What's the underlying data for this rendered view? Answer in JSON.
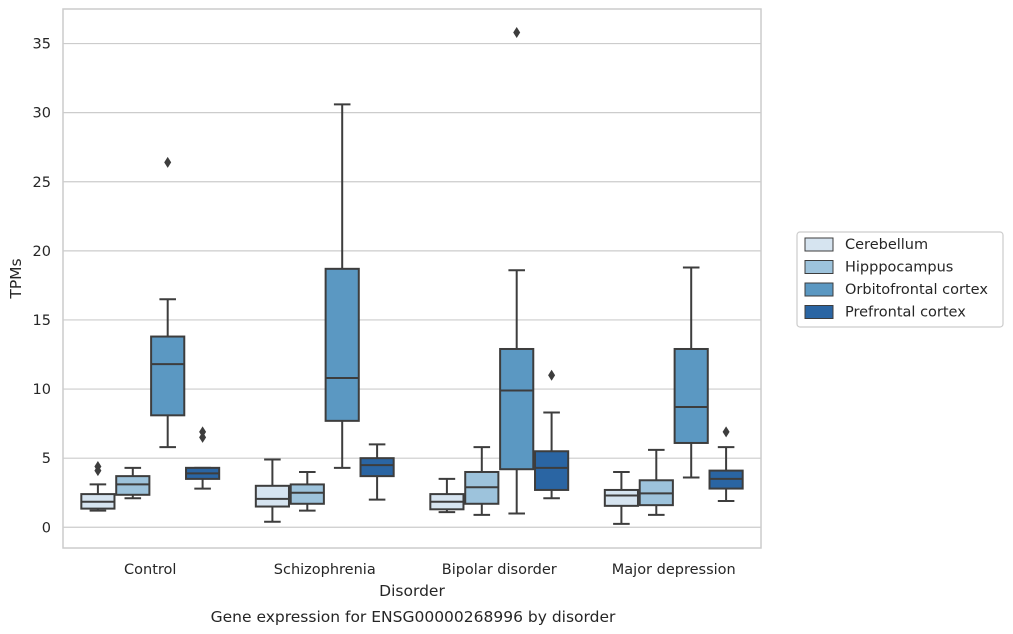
{
  "chart_data": {
    "type": "box",
    "title": "",
    "xlabel": "Disorder",
    "ylabel": "TPMs",
    "caption": "Gene expression for ENSG00000268996 by disorder",
    "categories": [
      "Control",
      "Schizophrenia",
      "Bipolar disorder",
      "Major depression"
    ],
    "y_ticks": [
      0,
      5,
      10,
      15,
      20,
      25,
      30,
      35
    ],
    "ylim": [
      -1.5,
      37.5
    ],
    "grid": "horizontal",
    "legend_position": "right",
    "series": [
      {
        "name": "Cerebellum",
        "color": "#d6e4f0",
        "boxes": [
          {
            "whisker_low": 1.2,
            "q1": 1.35,
            "median": 1.85,
            "q3": 2.4,
            "whisker_high": 3.1,
            "outliers": [
              4.1,
              4.4
            ]
          },
          {
            "whisker_low": 0.4,
            "q1": 1.5,
            "median": 2.05,
            "q3": 3.0,
            "whisker_high": 4.9,
            "outliers": []
          },
          {
            "whisker_low": 1.1,
            "q1": 1.3,
            "median": 1.85,
            "q3": 2.4,
            "whisker_high": 3.5,
            "outliers": []
          },
          {
            "whisker_low": 0.25,
            "q1": 1.55,
            "median": 2.3,
            "q3": 2.7,
            "whisker_high": 4.0,
            "outliers": []
          }
        ]
      },
      {
        "name": "Hipppocampus",
        "color": "#9dc3dc",
        "boxes": [
          {
            "whisker_low": 2.1,
            "q1": 2.35,
            "median": 3.1,
            "q3": 3.7,
            "whisker_high": 4.3,
            "outliers": []
          },
          {
            "whisker_low": 1.2,
            "q1": 1.7,
            "median": 2.5,
            "q3": 3.1,
            "whisker_high": 4.0,
            "outliers": []
          },
          {
            "whisker_low": 0.9,
            "q1": 1.7,
            "median": 2.9,
            "q3": 4.0,
            "whisker_high": 5.8,
            "outliers": []
          },
          {
            "whisker_low": 0.9,
            "q1": 1.6,
            "median": 2.45,
            "q3": 3.4,
            "whisker_high": 5.6,
            "outliers": []
          }
        ]
      },
      {
        "name": "Orbitofrontal cortex",
        "color": "#5b98c2",
        "boxes": [
          {
            "whisker_low": 5.8,
            "q1": 8.1,
            "median": 11.8,
            "q3": 13.8,
            "whisker_high": 16.5,
            "outliers": [
              26.4
            ]
          },
          {
            "whisker_low": 4.3,
            "q1": 7.7,
            "median": 10.8,
            "q3": 18.7,
            "whisker_high": 30.6,
            "outliers": []
          },
          {
            "whisker_low": 1.0,
            "q1": 4.2,
            "median": 9.9,
            "q3": 12.9,
            "whisker_high": 18.6,
            "outliers": [
              35.8
            ]
          },
          {
            "whisker_low": 3.6,
            "q1": 6.1,
            "median": 8.7,
            "q3": 12.9,
            "whisker_high": 18.8,
            "outliers": []
          }
        ]
      },
      {
        "name": "Prefrontal cortex",
        "color": "#2a65a3",
        "boxes": [
          {
            "whisker_low": 2.8,
            "q1": 3.5,
            "median": 3.9,
            "q3": 4.3,
            "whisker_high": 4.3,
            "outliers": [
              6.5,
              6.9
            ]
          },
          {
            "whisker_low": 2.0,
            "q1": 3.7,
            "median": 4.5,
            "q3": 5.0,
            "whisker_high": 6.0,
            "outliers": []
          },
          {
            "whisker_low": 2.1,
            "q1": 2.7,
            "median": 4.3,
            "q3": 5.5,
            "whisker_high": 8.3,
            "outliers": [
              11.0
            ]
          },
          {
            "whisker_low": 1.9,
            "q1": 2.8,
            "median": 3.5,
            "q3": 4.1,
            "whisker_high": 5.8,
            "outliers": [
              6.9
            ]
          }
        ]
      }
    ]
  }
}
